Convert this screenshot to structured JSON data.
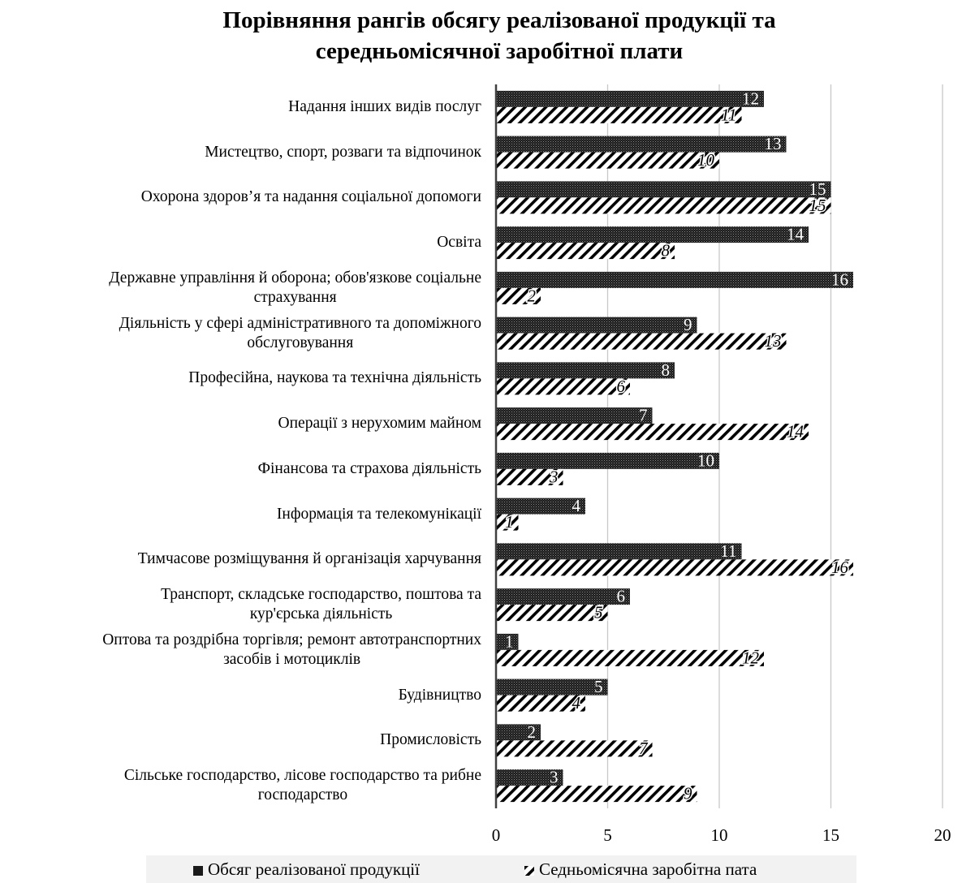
{
  "chart_data": {
    "type": "bar",
    "orientation": "horizontal",
    "title_lines": [
      "Порівняння рангів обсягу реалізованої продукції та",
      "середньомісячної заробітної плати"
    ],
    "categories": [
      "Надання інших видів послуг",
      "Мистецтво, спорт, розваги та відпочинок",
      "Охорона здоров’я та надання соціальної допомоги",
      "Освіта ",
      "Державне управління й оборона; обов'язкове соціальне страхування",
      "Діяльність у сфері адміністративного та допоміжного обслуговування",
      "Професійна, наукова та технічна діяльність",
      "Операції з нерухомим майном",
      "Фінансова та страхова діяльність",
      "Інформація та телекомунікації",
      "Тимчасове розміщування й організація харчування",
      "Транспорт, складське господарство, поштова та кур'єрська діяльність",
      "Оптова та роздрібна торгівля; ремонт автотранспортних засобів і мотоциклів",
      "Будівництво",
      "Промисловість",
      "Сільське господарство,  лісове господарство та рибне господарство"
    ],
    "category_lines": [
      [
        "Надання інших видів послуг"
      ],
      [
        "Мистецтво, спорт, розваги та відпочинок"
      ],
      [
        "Охорона здоров’я та надання соціальної допомоги"
      ],
      [
        "Освіта "
      ],
      [
        "Державне управління й оборона; обов'язкове соціальне",
        "страхування"
      ],
      [
        "Діяльність у сфері адміністративного та допоміжного",
        "обслуговування"
      ],
      [
        "Професійна, наукова та технічна діяльність"
      ],
      [
        "Операції з нерухомим майном"
      ],
      [
        "Фінансова та страхова діяльність"
      ],
      [
        "Інформація та телекомунікації"
      ],
      [
        "Тимчасове розміщування й організація харчування"
      ],
      [
        "Транспорт, складське господарство, поштова та",
        "кур'єрська діяльність"
      ],
      [
        "Оптова та роздрібна торгівля; ремонт автотранспортних",
        "засобів і мотоциклів"
      ],
      [
        "Будівництво"
      ],
      [
        "Промисловість"
      ],
      [
        "Сільське господарство,  лісове господарство та рибне",
        "господарство"
      ]
    ],
    "series": [
      {
        "name": "Обсяг реалізованої продукції",
        "values": [
          12,
          13,
          15,
          14,
          16,
          9,
          8,
          7,
          10,
          4,
          11,
          6,
          1,
          5,
          2,
          3
        ]
      },
      {
        "name": "Седньомісячна заробітна пата",
        "values": [
          11,
          10,
          15,
          8,
          2,
          13,
          6,
          14,
          3,
          1,
          16,
          5,
          12,
          4,
          7,
          9
        ]
      }
    ],
    "xlim": [
      0,
      20
    ],
    "xticks": [
      "0",
      "5",
      "10",
      "15",
      "20"
    ],
    "grid": true,
    "data_labels": true,
    "legend_position": "bottom",
    "colors": {
      "series1": "#2b2b2b",
      "series2": "#000000",
      "grid": "#c8c8c8",
      "axis": "#404040",
      "legend_bg": "#f2f2f2"
    }
  }
}
